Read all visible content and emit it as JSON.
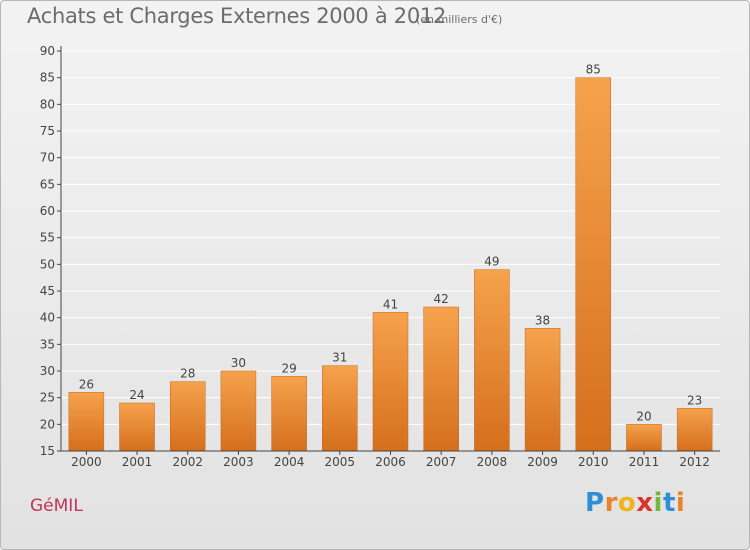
{
  "title": "Achats et Charges Externes 2000 à 2012",
  "unit": "(en milliers d'€)",
  "commune": "GéMIL",
  "brand": {
    "letters": [
      "P",
      "r",
      "o",
      "x",
      "i",
      "t",
      "i"
    ],
    "colors": [
      "#2f8fd6",
      "#e8842a",
      "#f0b51a",
      "#d8342c",
      "#79b43d",
      "#2f8fd6",
      "#e8842a"
    ]
  },
  "colors": {
    "bar_top": "#f6a24d",
    "bar_bottom": "#d56f1c",
    "axis": "#444444",
    "grid": "#ffffff"
  },
  "chart_data": {
    "type": "bar",
    "title": "Achats et Charges Externes 2000 à 2012",
    "subtitle": "(en milliers d'€)",
    "categories": [
      "2000",
      "2001",
      "2002",
      "2003",
      "2004",
      "2005",
      "2006",
      "2007",
      "2008",
      "2009",
      "2010",
      "2011",
      "2012"
    ],
    "values": [
      26,
      24,
      28,
      30,
      29,
      31,
      41,
      42,
      49,
      38,
      85,
      20,
      23
    ],
    "ylim": [
      15,
      90
    ],
    "yticks": [
      15,
      20,
      25,
      30,
      35,
      40,
      45,
      50,
      55,
      60,
      65,
      70,
      75,
      80,
      85,
      90
    ],
    "grid": true,
    "data_labels": true
  }
}
